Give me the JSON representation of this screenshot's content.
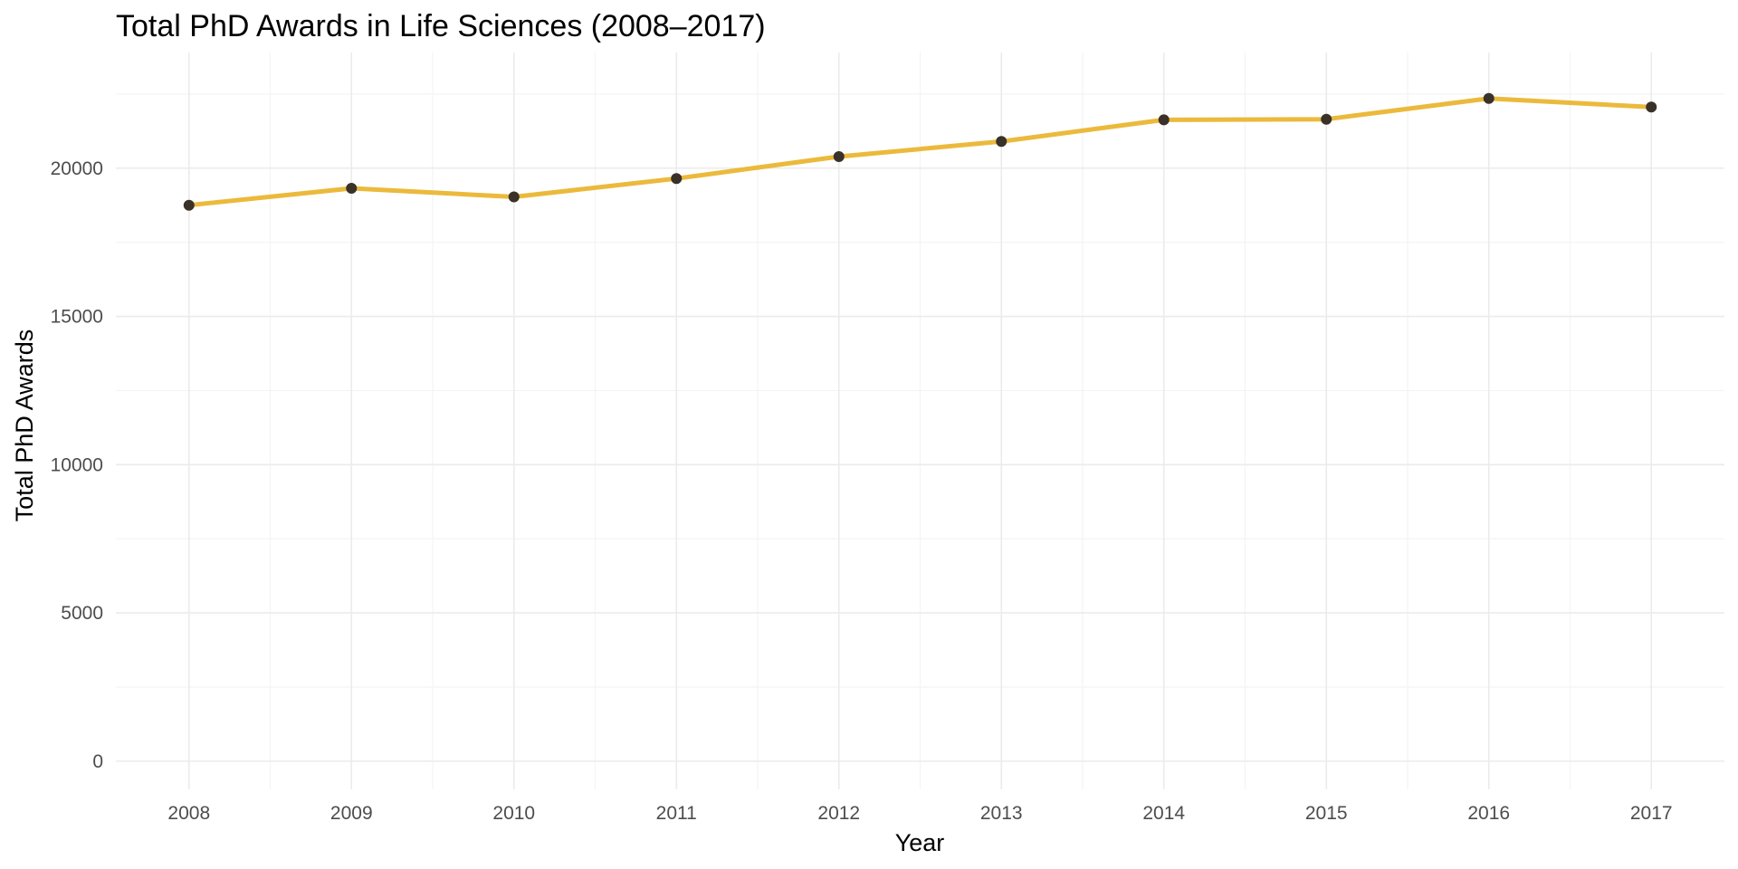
{
  "chart_data": {
    "type": "line",
    "title": "Total PhD Awards in Life Sciences (2008–2017)",
    "xlabel": "Year",
    "ylabel": "Total PhD Awards",
    "x": [
      2008,
      2009,
      2010,
      2011,
      2012,
      2013,
      2014,
      2015,
      2016,
      2017
    ],
    "series": [
      {
        "values": [
          18750,
          19320,
          19030,
          19650,
          20390,
          20900,
          21630,
          21650,
          22350,
          22060
        ]
      }
    ],
    "ylim": [
      -950,
      23900
    ],
    "xlim": [
      2007.55,
      2017.45
    ],
    "y_ticks": [
      0,
      5000,
      10000,
      15000,
      20000
    ],
    "x_ticks": [
      2008,
      2009,
      2010,
      2011,
      2012,
      2013,
      2014,
      2015,
      2016,
      2017
    ],
    "grid": true,
    "legend": "none",
    "colors": {
      "line": "#EBBA3C",
      "point": "#3A3128",
      "grid_major": "#EBEBEB",
      "grid_minor": "#F4F4F4"
    }
  }
}
